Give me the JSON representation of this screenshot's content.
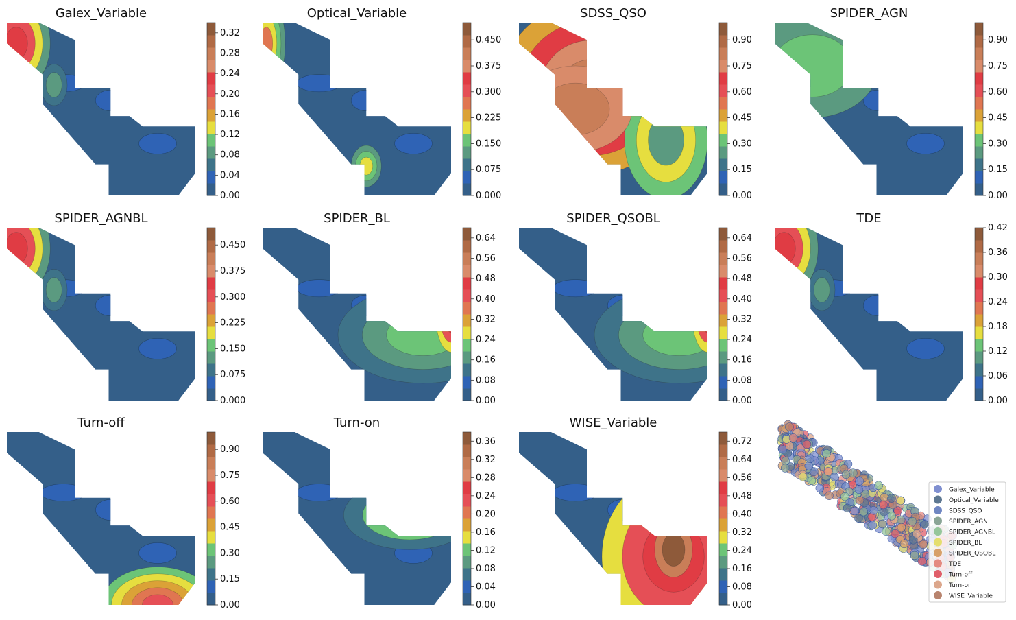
{
  "colors": {
    "bands": [
      "#345f89",
      "#2f63b5",
      "#3e7389",
      "#5b9a80",
      "#6cc477",
      "#e6de3f",
      "#dba237",
      "#e07651",
      "#e54f56",
      "#e03c44",
      "#d98b6a",
      "#c97e58",
      "#b06a45",
      "#8e5a3a"
    ]
  },
  "chart_data": [
    {
      "type": "heatmap",
      "title": "Galex_Variable",
      "hotspots": "left-top",
      "colorbar_ticks": [
        "0.00",
        "0.04",
        "0.08",
        "0.12",
        "0.16",
        "0.20",
        "0.24",
        "0.28",
        "0.32"
      ],
      "vmin": 0.0,
      "vmax": 0.34
    },
    {
      "type": "heatmap",
      "title": "Optical_Variable",
      "hotspots": "left-edge",
      "colorbar_ticks": [
        "0.000",
        "0.075",
        "0.150",
        "0.225",
        "0.300",
        "0.375",
        "0.450"
      ],
      "vmin": 0.0,
      "vmax": 0.5
    },
    {
      "type": "heatmap",
      "title": "SDSS_QSO",
      "hotspots": "widespread",
      "colorbar_ticks": [
        "0.00",
        "0.15",
        "0.30",
        "0.45",
        "0.60",
        "0.75",
        "0.90"
      ],
      "vmin": 0.0,
      "vmax": 1.0
    },
    {
      "type": "heatmap",
      "title": "SPIDER_AGN",
      "hotspots": "top",
      "colorbar_ticks": [
        "0.00",
        "0.15",
        "0.30",
        "0.45",
        "0.60",
        "0.75",
        "0.90"
      ],
      "vmin": 0.0,
      "vmax": 1.0
    },
    {
      "type": "heatmap",
      "title": "SPIDER_AGNBL",
      "hotspots": "left-top",
      "colorbar_ticks": [
        "0.000",
        "0.075",
        "0.150",
        "0.225",
        "0.300",
        "0.375",
        "0.450"
      ],
      "vmin": 0.0,
      "vmax": 0.5
    },
    {
      "type": "heatmap",
      "title": "SPIDER_BL",
      "hotspots": "right-edge",
      "colorbar_ticks": [
        "0.00",
        "0.08",
        "0.16",
        "0.24",
        "0.32",
        "0.40",
        "0.48",
        "0.56",
        "0.64"
      ],
      "vmin": 0.0,
      "vmax": 0.68
    },
    {
      "type": "heatmap",
      "title": "SPIDER_QSOBL",
      "hotspots": "right-edge",
      "colorbar_ticks": [
        "0.00",
        "0.08",
        "0.16",
        "0.24",
        "0.32",
        "0.40",
        "0.48",
        "0.56",
        "0.64"
      ],
      "vmin": 0.0,
      "vmax": 0.68
    },
    {
      "type": "heatmap",
      "title": "TDE",
      "hotspots": "left-top",
      "colorbar_ticks": [
        "0.00",
        "0.06",
        "0.12",
        "0.18",
        "0.24",
        "0.30",
        "0.36",
        "0.42"
      ],
      "vmin": 0.0,
      "vmax": 0.42
    },
    {
      "type": "heatmap",
      "title": "Turn-off",
      "hotspots": "bottom",
      "colorbar_ticks": [
        "0.00",
        "0.15",
        "0.30",
        "0.45",
        "0.60",
        "0.75",
        "0.90"
      ],
      "vmin": 0.0,
      "vmax": 1.0
    },
    {
      "type": "heatmap",
      "title": "Turn-on",
      "hotspots": "right-mid",
      "colorbar_ticks": [
        "0.00",
        "0.04",
        "0.08",
        "0.12",
        "0.16",
        "0.20",
        "0.24",
        "0.28",
        "0.32",
        "0.36"
      ],
      "vmin": 0.0,
      "vmax": 0.38
    },
    {
      "type": "heatmap",
      "title": "WISE_Variable",
      "hotspots": "right-bottom",
      "colorbar_ticks": [
        "0.00",
        "0.08",
        "0.16",
        "0.24",
        "0.32",
        "0.40",
        "0.48",
        "0.56",
        "0.64",
        "0.72"
      ],
      "vmin": 0.0,
      "vmax": 0.76
    },
    {
      "type": "scatter",
      "legend": [
        {
          "name": "Galex_Variable",
          "color": "#7f8fd0"
        },
        {
          "name": "Optical_Variable",
          "color": "#5d7791"
        },
        {
          "name": "SDSS_QSO",
          "color": "#6f86c2"
        },
        {
          "name": "SPIDER_AGN",
          "color": "#8aa596"
        },
        {
          "name": "SPIDER_AGNBL",
          "color": "#95c69b"
        },
        {
          "name": "SPIDER_BL",
          "color": "#e4de6e"
        },
        {
          "name": "SPIDER_QSOBL",
          "color": "#d7a06a"
        },
        {
          "name": "TDE",
          "color": "#e48a80"
        },
        {
          "name": "Turn-off",
          "color": "#e05e6a"
        },
        {
          "name": "Turn-on",
          "color": "#dca78c"
        },
        {
          "name": "WISE_Variable",
          "color": "#b8846e"
        }
      ],
      "legend_position": "right"
    }
  ]
}
